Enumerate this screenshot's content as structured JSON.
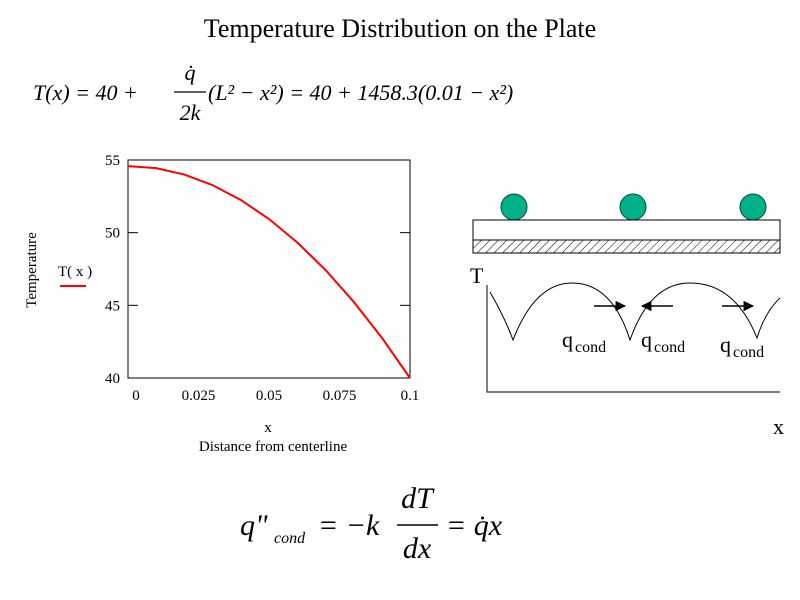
{
  "title": "Temperature Distribution on the Plate",
  "equation_top": {
    "lhs": "T(x) = 40 +",
    "numerator": "q̇",
    "denominator": "2k",
    "rhs": "(L² − x²) = 40 + 1458.3(0.01 − x²)"
  },
  "equation_bottom": {
    "lhs": "q\"",
    "subscript": "cond",
    "middle": "= −k",
    "numerator": "dT",
    "denominator": "dx",
    "rhs": "= q̇x"
  },
  "chart_data": {
    "type": "line",
    "x_label": "x",
    "x_sublabel": "Distance from centerline",
    "y_label": "Temperature",
    "x": [
      0,
      0.01,
      0.02,
      0.03,
      0.04,
      0.05,
      0.06,
      0.07,
      0.08,
      0.09,
      0.1
    ],
    "series": [
      {
        "name": "T( x )",
        "color": "#ff0000",
        "values": [
          54.58,
          54.44,
          54.0,
          53.27,
          52.25,
          50.94,
          49.33,
          47.44,
          45.25,
          42.78,
          40.0
        ]
      }
    ],
    "xlim": [
      0,
      0.1
    ],
    "ylim": [
      40,
      55
    ],
    "xticks": [
      0,
      0.025,
      0.05,
      0.075,
      0.1
    ],
    "yticks": [
      40,
      45,
      50,
      55
    ]
  },
  "diagram": {
    "y_label": "T",
    "x_label": "x",
    "flux_labels": [
      {
        "q": "q",
        "sub": "cond"
      },
      {
        "q": "q",
        "sub": "cond"
      },
      {
        "q": "q",
        "sub": "cond"
      }
    ]
  }
}
